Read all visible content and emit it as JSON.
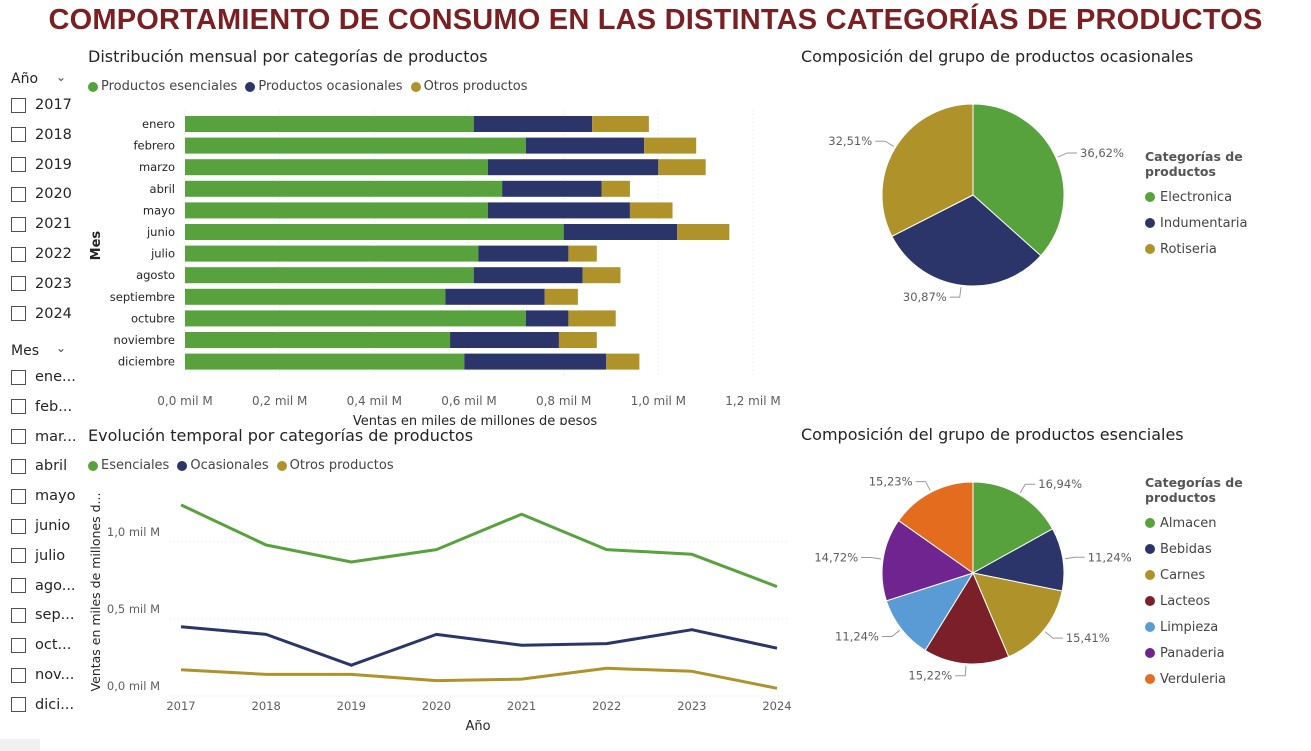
{
  "page_title": "COMPORTAMIENTO DE CONSUMO EN LAS DISTINTAS CATEGORÍAS DE PRODUCTOS",
  "slicers": {
    "year": {
      "label": "Año",
      "items": [
        "2017",
        "2018",
        "2019",
        "2020",
        "2021",
        "2022",
        "2023",
        "2024"
      ]
    },
    "month": {
      "label": "Mes",
      "items": [
        "ene...",
        "feb...",
        "mar...",
        "abril",
        "mayo",
        "junio",
        "julio",
        "ago...",
        "sep...",
        "oct...",
        "nov...",
        "dici..."
      ]
    }
  },
  "colors": {
    "green": "#57a23d",
    "navy": "#2b356a",
    "gold": "#b0922a",
    "maroon": "#7b1f28",
    "lightblue": "#5b9bd5",
    "purple": "#6f2490",
    "orange": "#e36c1e",
    "title": "#7a1f22"
  },
  "icons": {
    "slicer_collapse": "chevron-down-icon"
  },
  "chart_data": [
    {
      "type": "bar",
      "orientation": "horizontal",
      "stacked": true,
      "title": "Distribución mensual por categorías de productos",
      "xlabel": "Ventas en miles de millones de pesos",
      "ylabel": "Mes",
      "categories": [
        "enero",
        "febrero",
        "marzo",
        "abril",
        "mayo",
        "junio",
        "julio",
        "agosto",
        "septiembre",
        "octubre",
        "noviembre",
        "diciembre"
      ],
      "series": [
        {
          "name": "Productos esenciales",
          "color": "#57a23d",
          "values": [
            0.61,
            0.72,
            0.64,
            0.67,
            0.64,
            0.8,
            0.62,
            0.61,
            0.55,
            0.72,
            0.56,
            0.59
          ]
        },
        {
          "name": "Productos ocasionales",
          "color": "#2b356a",
          "values": [
            0.25,
            0.25,
            0.36,
            0.21,
            0.3,
            0.24,
            0.19,
            0.23,
            0.21,
            0.09,
            0.23,
            0.3
          ]
        },
        {
          "name": "Otros productos",
          "color": "#b0922a",
          "values": [
            0.12,
            0.11,
            0.1,
            0.06,
            0.09,
            0.11,
            0.06,
            0.08,
            0.07,
            0.1,
            0.08,
            0.07
          ]
        }
      ],
      "xticks": [
        "0,0 mil M",
        "0,2 mil M",
        "0,4 mil M",
        "0,6 mil M",
        "0,8 mil M",
        "1,0 mil M",
        "1,2 mil M"
      ],
      "xlim": [
        0,
        1.2
      ],
      "legend": "top-left"
    },
    {
      "type": "line",
      "title": "Evolución temporal por categorías de productos",
      "xlabel": "Año",
      "ylabel": "Ventas en miles de millones d...",
      "x": [
        "2017",
        "2018",
        "2019",
        "2020",
        "2021",
        "2022",
        "2023",
        "2024"
      ],
      "series": [
        {
          "name": "Esenciales",
          "color": "#57a23d",
          "values": [
            1.24,
            0.98,
            0.87,
            0.95,
            1.18,
            0.95,
            0.92,
            0.71
          ]
        },
        {
          "name": "Ocasionales",
          "color": "#2b356a",
          "values": [
            0.45,
            0.4,
            0.2,
            0.4,
            0.33,
            0.34,
            0.43,
            0.31
          ]
        },
        {
          "name": "Otros productos",
          "color": "#b0922a",
          "values": [
            0.17,
            0.14,
            0.14,
            0.1,
            0.11,
            0.18,
            0.16,
            0.05
          ]
        }
      ],
      "yticks": [
        {
          "value": 0,
          "label": "0,0 mil M"
        },
        {
          "value": 0.5,
          "label": "0,5 mil M"
        },
        {
          "value": 1.0,
          "label": "1,0 mil M"
        }
      ],
      "ylim": [
        0,
        1.35
      ],
      "grid": true,
      "legend": "top-left"
    },
    {
      "type": "pie",
      "title": "Composición del grupo de productos ocasionales",
      "legend_title": "Categorías de productos",
      "slices": [
        {
          "label": "Electronica",
          "value": 36.62,
          "display": "36,62%",
          "color": "#57a23d"
        },
        {
          "label": "Indumentaria",
          "value": 30.87,
          "display": "30,87%",
          "color": "#2b356a"
        },
        {
          "label": "Rotiseria",
          "value": 32.51,
          "display": "32,51%",
          "color": "#b0922a"
        }
      ],
      "legend": "right"
    },
    {
      "type": "pie",
      "title": "Composición del grupo de productos esenciales",
      "legend_title": "Categorías de productos",
      "slices": [
        {
          "label": "Almacen",
          "value": 16.94,
          "display": "16,94%",
          "color": "#57a23d"
        },
        {
          "label": "Bebidas",
          "value": 11.24,
          "display": "11,24%",
          "color": "#2b356a"
        },
        {
          "label": "Carnes",
          "value": 15.41,
          "display": "15,41%",
          "color": "#b0922a"
        },
        {
          "label": "Lacteos",
          "value": 15.22,
          "display": "15,22%",
          "color": "#7b1f28"
        },
        {
          "label": "Limpieza",
          "value": 11.24,
          "display": "11,24%",
          "color": "#5b9bd5"
        },
        {
          "label": "Panaderia",
          "value": 14.72,
          "display": "14,72%",
          "color": "#6f2490"
        },
        {
          "label": "Verduleria",
          "value": 15.23,
          "display": "15,23%",
          "color": "#e36c1e"
        }
      ],
      "legend": "right"
    }
  ]
}
